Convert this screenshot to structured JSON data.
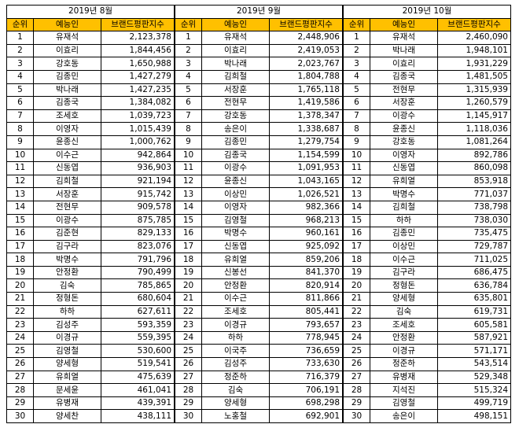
{
  "headers": {
    "rank": "순위",
    "name": "예능인",
    "index": "브랜드평판지수"
  },
  "tables": [
    {
      "title": "2019년 8월",
      "rows": [
        {
          "rank": "1",
          "name": "유재석",
          "value": "2,123,378"
        },
        {
          "rank": "2",
          "name": "이효리",
          "value": "1,844,456"
        },
        {
          "rank": "3",
          "name": "강호동",
          "value": "1,650,988"
        },
        {
          "rank": "4",
          "name": "김종민",
          "value": "1,427,279"
        },
        {
          "rank": "5",
          "name": "박나래",
          "value": "1,427,235"
        },
        {
          "rank": "6",
          "name": "김종국",
          "value": "1,384,082"
        },
        {
          "rank": "7",
          "name": "조세호",
          "value": "1,039,723"
        },
        {
          "rank": "8",
          "name": "이영자",
          "value": "1,015,439"
        },
        {
          "rank": "9",
          "name": "윤종신",
          "value": "1,000,762"
        },
        {
          "rank": "10",
          "name": "이수근",
          "value": "942,864"
        },
        {
          "rank": "11",
          "name": "신동엽",
          "value": "936,903"
        },
        {
          "rank": "12",
          "name": "김희철",
          "value": "921,194"
        },
        {
          "rank": "13",
          "name": "서장훈",
          "value": "915,742"
        },
        {
          "rank": "14",
          "name": "전현무",
          "value": "909,578"
        },
        {
          "rank": "15",
          "name": "이광수",
          "value": "875,785"
        },
        {
          "rank": "16",
          "name": "김준현",
          "value": "829,133"
        },
        {
          "rank": "17",
          "name": "김구라",
          "value": "823,076"
        },
        {
          "rank": "18",
          "name": "박명수",
          "value": "791,796"
        },
        {
          "rank": "19",
          "name": "안정환",
          "value": "790,499"
        },
        {
          "rank": "20",
          "name": "김숙",
          "value": "785,865"
        },
        {
          "rank": "21",
          "name": "정형돈",
          "value": "680,604"
        },
        {
          "rank": "22",
          "name": "하하",
          "value": "627,611"
        },
        {
          "rank": "23",
          "name": "김성주",
          "value": "593,359"
        },
        {
          "rank": "24",
          "name": "이경규",
          "value": "559,395"
        },
        {
          "rank": "25",
          "name": "김영철",
          "value": "530,600"
        },
        {
          "rank": "26",
          "name": "양세형",
          "value": "519,541"
        },
        {
          "rank": "27",
          "name": "유희열",
          "value": "475,639"
        },
        {
          "rank": "28",
          "name": "문세윤",
          "value": "461,041"
        },
        {
          "rank": "29",
          "name": "유병재",
          "value": "439,391"
        },
        {
          "rank": "30",
          "name": "양세찬",
          "value": "438,111"
        }
      ]
    },
    {
      "title": "2019년 9월",
      "rows": [
        {
          "rank": "1",
          "name": "유재석",
          "value": "2,448,906"
        },
        {
          "rank": "2",
          "name": "이효리",
          "value": "2,419,053"
        },
        {
          "rank": "3",
          "name": "박나래",
          "value": "2,023,767"
        },
        {
          "rank": "4",
          "name": "김희철",
          "value": "1,804,788"
        },
        {
          "rank": "5",
          "name": "서장훈",
          "value": "1,765,118"
        },
        {
          "rank": "6",
          "name": "전현무",
          "value": "1,419,586"
        },
        {
          "rank": "7",
          "name": "강호동",
          "value": "1,378,347"
        },
        {
          "rank": "8",
          "name": "송은이",
          "value": "1,338,687"
        },
        {
          "rank": "9",
          "name": "김종민",
          "value": "1,279,754"
        },
        {
          "rank": "10",
          "name": "김종국",
          "value": "1,154,599"
        },
        {
          "rank": "11",
          "name": "이광수",
          "value": "1,091,953"
        },
        {
          "rank": "12",
          "name": "윤종신",
          "value": "1,043,165"
        },
        {
          "rank": "13",
          "name": "이상민",
          "value": "1,026,521"
        },
        {
          "rank": "14",
          "name": "이영자",
          "value": "982,366"
        },
        {
          "rank": "15",
          "name": "김영철",
          "value": "968,213"
        },
        {
          "rank": "16",
          "name": "박명수",
          "value": "960,161"
        },
        {
          "rank": "17",
          "name": "신동엽",
          "value": "925,092"
        },
        {
          "rank": "18",
          "name": "유희열",
          "value": "859,206"
        },
        {
          "rank": "19",
          "name": "신봉선",
          "value": "841,370"
        },
        {
          "rank": "20",
          "name": "안정환",
          "value": "820,914"
        },
        {
          "rank": "21",
          "name": "이수근",
          "value": "811,866"
        },
        {
          "rank": "22",
          "name": "조세호",
          "value": "805,441"
        },
        {
          "rank": "23",
          "name": "이경규",
          "value": "793,657"
        },
        {
          "rank": "24",
          "name": "하하",
          "value": "778,945"
        },
        {
          "rank": "25",
          "name": "이국주",
          "value": "736,659"
        },
        {
          "rank": "26",
          "name": "김성주",
          "value": "733,630"
        },
        {
          "rank": "27",
          "name": "정준하",
          "value": "716,379"
        },
        {
          "rank": "28",
          "name": "김숙",
          "value": "706,191"
        },
        {
          "rank": "29",
          "name": "양세형",
          "value": "698,298"
        },
        {
          "rank": "30",
          "name": "노홍철",
          "value": "692,901"
        }
      ]
    },
    {
      "title": "2019년 10월",
      "rows": [
        {
          "rank": "1",
          "name": "유재석",
          "value": "2,460,090"
        },
        {
          "rank": "2",
          "name": "박나래",
          "value": "1,948,101"
        },
        {
          "rank": "3",
          "name": "이효리",
          "value": "1,931,229"
        },
        {
          "rank": "4",
          "name": "김종국",
          "value": "1,481,505"
        },
        {
          "rank": "5",
          "name": "전현무",
          "value": "1,315,939"
        },
        {
          "rank": "6",
          "name": "서장훈",
          "value": "1,260,579"
        },
        {
          "rank": "7",
          "name": "이광수",
          "value": "1,145,917"
        },
        {
          "rank": "8",
          "name": "윤종신",
          "value": "1,118,036"
        },
        {
          "rank": "9",
          "name": "강호동",
          "value": "1,081,264"
        },
        {
          "rank": "10",
          "name": "이영자",
          "value": "892,786"
        },
        {
          "rank": "11",
          "name": "신동엽",
          "value": "860,098"
        },
        {
          "rank": "12",
          "name": "유희열",
          "value": "853,918"
        },
        {
          "rank": "13",
          "name": "박명수",
          "value": "771,037"
        },
        {
          "rank": "14",
          "name": "김희철",
          "value": "738,798"
        },
        {
          "rank": "15",
          "name": "하하",
          "value": "738,030"
        },
        {
          "rank": "16",
          "name": "김종민",
          "value": "735,475"
        },
        {
          "rank": "17",
          "name": "이상민",
          "value": "729,787"
        },
        {
          "rank": "18",
          "name": "이수근",
          "value": "711,025"
        },
        {
          "rank": "19",
          "name": "김구라",
          "value": "686,475"
        },
        {
          "rank": "20",
          "name": "정형돈",
          "value": "636,784"
        },
        {
          "rank": "21",
          "name": "양세형",
          "value": "635,801"
        },
        {
          "rank": "22",
          "name": "김숙",
          "value": "619,731"
        },
        {
          "rank": "23",
          "name": "조세호",
          "value": "605,581"
        },
        {
          "rank": "24",
          "name": "안정환",
          "value": "587,921"
        },
        {
          "rank": "25",
          "name": "이경규",
          "value": "571,171"
        },
        {
          "rank": "26",
          "name": "정준하",
          "value": "543,514"
        },
        {
          "rank": "27",
          "name": "유병재",
          "value": "529,348"
        },
        {
          "rank": "28",
          "name": "지석진",
          "value": "515,324"
        },
        {
          "rank": "29",
          "name": "김영철",
          "value": "499,719"
        },
        {
          "rank": "30",
          "name": "송은이",
          "value": "498,151"
        }
      ]
    }
  ]
}
